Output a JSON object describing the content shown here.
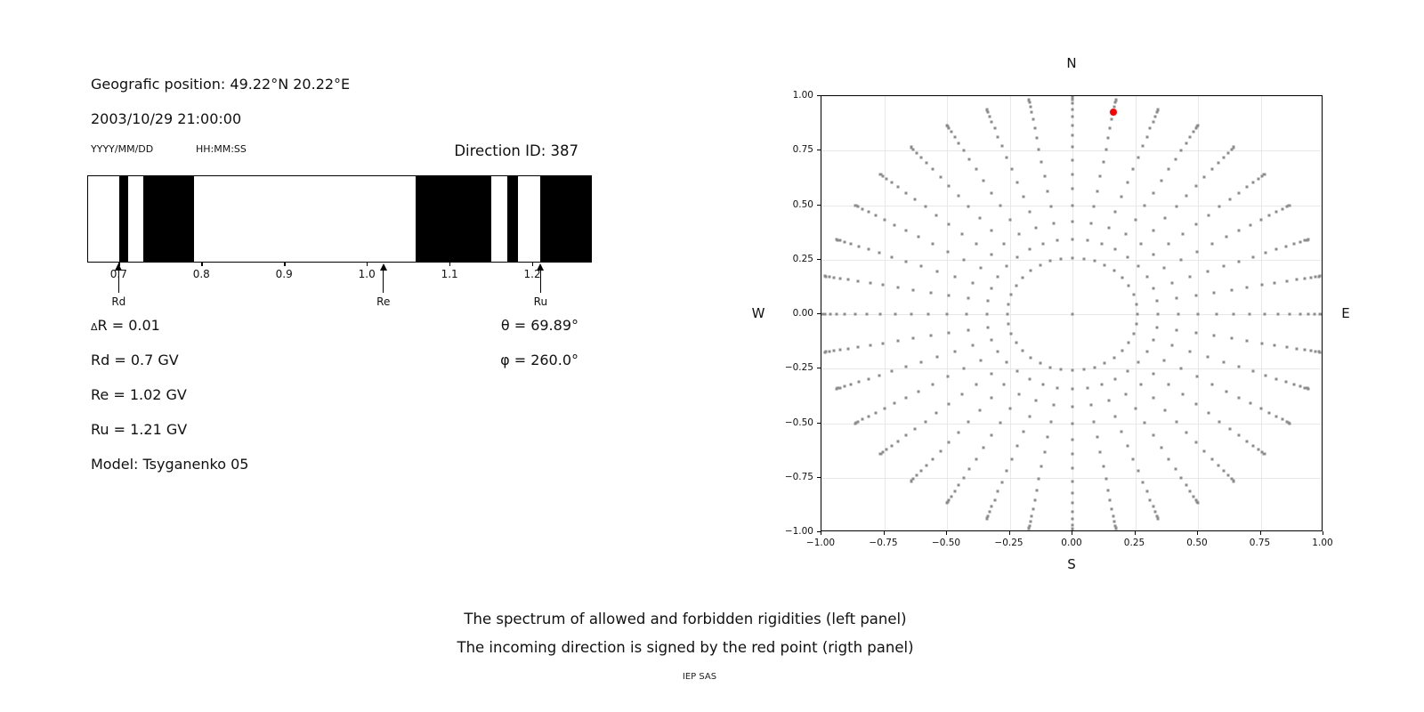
{
  "info": {
    "geo_position": "Geografic position: 49.22°N 20.22°E",
    "datetime": "2003/10/29 21:00:00",
    "date_format": "YYYY/MM/DD",
    "time_format": "HH:MM:SS",
    "direction_id": "Direction ID: 387"
  },
  "params": {
    "delta_symbol": "Δ",
    "delta_rest": "R = 0.01",
    "rd": "Rd = 0.7 GV",
    "re": "Re = 1.02 GV",
    "ru": "Ru = 1.21 GV",
    "model": "Model: Tsyganenko 05",
    "theta": "θ = 69.89°",
    "phi": "φ = 260.0°"
  },
  "caption": {
    "line1": "The spectrum of allowed and forbidden rigidities (left panel)",
    "line2": "The incoming direction is signed by the red point (rigth panel)",
    "credit": "IEP SAS"
  },
  "chart_data": [
    {
      "type": "bar",
      "panel": "left",
      "description": "1D rigidity spectrum band: black segments = allowed rigidities, white = forbidden",
      "xlim": [
        0.662,
        1.272
      ],
      "xticks": [
        0.7,
        0.8,
        0.9,
        1.0,
        1.1,
        1.2
      ],
      "xtick_labels": [
        "0.7",
        "0.8",
        "0.9",
        "1.0",
        "1.1",
        "1.2"
      ],
      "black_segments_gv": [
        [
          0.7,
          0.711
        ],
        [
          0.729,
          0.791
        ],
        [
          1.059,
          1.151
        ],
        [
          1.17,
          1.183
        ],
        [
          1.21,
          1.272
        ]
      ],
      "markers": [
        {
          "label": "Rd",
          "value_gv": 0.7
        },
        {
          "label": "Re",
          "value_gv": 1.02
        },
        {
          "label": "Ru",
          "value_gv": 1.21
        }
      ],
      "bar_color": "#000000",
      "background": "#ffffff"
    },
    {
      "type": "scatter",
      "panel": "right",
      "description": "Direction grid: dots at azimuths every 10° and zenith angles 15°–90° step 5°, radius = sin(zenith); red point marks the incoming direction",
      "xlim": [
        -1,
        1
      ],
      "ylim": [
        -1,
        1
      ],
      "xticks": [
        -1,
        -0.75,
        -0.5,
        -0.25,
        0,
        0.25,
        0.5,
        0.75,
        1
      ],
      "xtick_labels": [
        "−1.00",
        "−0.75",
        "−0.50",
        "−0.25",
        "0.00",
        "0.25",
        "0.50",
        "0.75",
        "1.00"
      ],
      "ytick_labels_top_to_bottom": [
        "1.00",
        "0.75",
        "0.50",
        "0.25",
        "0.00",
        "−0.25",
        "−0.50",
        "−0.75",
        "−1.00"
      ],
      "grid": true,
      "grid_color": "#e8e8e8",
      "compass": {
        "north": "N",
        "south": "S",
        "west": "W",
        "east": "E"
      },
      "dot_grid": {
        "azimuth_start_deg": 0,
        "azimuth_step_deg": 10,
        "azimuth_count": 36,
        "zenith_start_deg": 15,
        "zenith_step_deg": 5,
        "zenith_count": 16,
        "radius_rule": "sin(zenith)",
        "center_dot": true,
        "dot_color": "#8c8c8c"
      },
      "red_point": {
        "x": 0.163,
        "y": 0.925,
        "color": "#ff0000"
      }
    }
  ]
}
